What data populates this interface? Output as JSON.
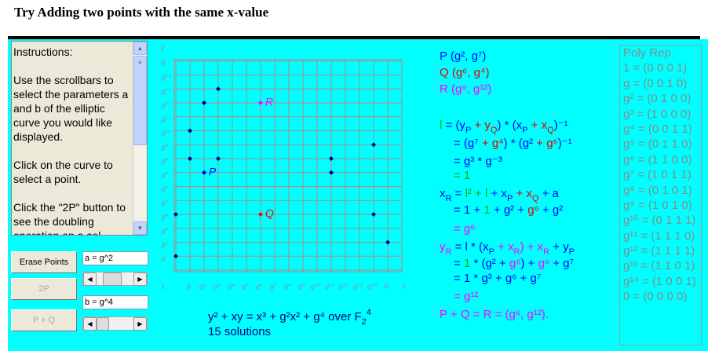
{
  "header": {
    "title": "Try Adding two points with the same x-value"
  },
  "instructions": {
    "heading": "Instructions:",
    "paragraphs": [
      "Use the scrollbars to select the parameters a and b of the elliptic curve you would like displayed.",
      "Click on the curve to select a point.",
      "Click the \"2P\" button to see the doubling operation on a sel"
    ]
  },
  "controls": {
    "erase": "Erase Points",
    "double": "2P",
    "add": "P + Q",
    "a_field": "a = g^2",
    "b_field": "b = g^4"
  },
  "plot": {
    "x_label": "x",
    "y_label": "y",
    "x_categories": [
      null,
      "g",
      "g²",
      "g³",
      "g⁴",
      "g⁵",
      "g⁶",
      "g⁷",
      "g⁸",
      "g⁹",
      "g¹⁰",
      "g¹¹",
      "g¹²",
      "g¹³",
      "g¹⁴",
      "0"
    ],
    "y_categories": [
      "1",
      "g",
      "g²",
      "g³",
      "g⁴",
      "g⁵",
      "g⁶",
      "g⁷",
      "g⁸",
      "g⁹",
      "g¹⁰",
      "g¹¹",
      "g¹²",
      "g¹³",
      "g¹⁴",
      "0"
    ],
    "point_color": "#000080",
    "points": [
      {
        "x": 0,
        "y": 4
      },
      {
        "x": 0,
        "y": 1
      },
      {
        "x": 1,
        "y": 10
      },
      {
        "x": 1,
        "y": 8
      },
      {
        "x": 2,
        "y": 12
      },
      {
        "x": 2,
        "y": 7,
        "label": "P",
        "color": "#0000ff"
      },
      {
        "x": 3,
        "y": 13
      },
      {
        "x": 3,
        "y": 8
      },
      {
        "x": 6,
        "y": 12,
        "label": "R",
        "color": "#ff00ff"
      },
      {
        "x": 6,
        "y": 4,
        "label": "Q",
        "color": "#ff0000"
      },
      {
        "x": 11,
        "y": 8
      },
      {
        "x": 11,
        "y": 7
      },
      {
        "x": 14,
        "y": 9
      },
      {
        "x": 14,
        "y": 4
      },
      {
        "x": 15,
        "y": 2
      }
    ]
  },
  "formulas": [
    [
      {
        "text": "P (g², g⁷)",
        "color": "#0000ff"
      }
    ],
    [
      {
        "text": "Q (g⁶, g⁴)",
        "color": "#e00000"
      }
    ],
    [
      {
        "text": "R (g⁶, g¹²)",
        "color": "#ff00ff"
      }
    ],
    [
      {
        "text": "l",
        "color": "#00b000"
      },
      {
        "text": " = (y",
        "color": "#0000ff"
      },
      {
        "text": "P",
        "color": "#0000ff",
        "sub": true
      },
      {
        "text": " + y",
        "color": "#e00000"
      },
      {
        "text": "Q",
        "color": "#e00000",
        "sub": true
      },
      {
        "text": ") * (x",
        "color": "#0000ff"
      },
      {
        "text": "P",
        "color": "#0000ff",
        "sub": true
      },
      {
        "text": " + x",
        "color": "#e00000"
      },
      {
        "text": "Q",
        "color": "#e00000",
        "sub": true
      },
      {
        "text": ")⁻¹",
        "color": "#0000ff"
      }
    ],
    [
      {
        "text": "= (g⁷",
        "color": "#0000ff"
      },
      {
        "text": " + g⁴",
        "color": "#e00000"
      },
      {
        "text": ") * (g²",
        "color": "#0000ff"
      },
      {
        "text": " + g⁶",
        "color": "#e00000"
      },
      {
        "text": ")⁻¹",
        "color": "#0000ff"
      }
    ],
    [
      {
        "text": "= g³ * g⁻³",
        "color": "#0000ff"
      }
    ],
    [
      {
        "text": "= 1",
        "color": "#00b000"
      }
    ],
    [
      {
        "text": "x",
        "color": "#0000ff"
      },
      {
        "text": "R",
        "color": "#0000ff",
        "sub": true
      },
      {
        "text": " = ",
        "color": "#0000ff"
      },
      {
        "text": "l² + l",
        "color": "#00b000"
      },
      {
        "text": " + x",
        "color": "#0000ff"
      },
      {
        "text": "P",
        "color": "#0000ff",
        "sub": true
      },
      {
        "text": " + x",
        "color": "#e00000"
      },
      {
        "text": "Q",
        "color": "#e00000",
        "sub": true
      },
      {
        "text": " + a",
        "color": "#0000ff"
      }
    ],
    [
      {
        "text": "= 1 + ",
        "color": "#0000ff"
      },
      {
        "text": "1",
        "color": "#00b000"
      },
      {
        "text": " + g² + ",
        "color": "#0000ff"
      },
      {
        "text": "g⁶",
        "color": "#e00000"
      },
      {
        "text": " + g²",
        "color": "#0000ff"
      }
    ],
    [
      {
        "text": "= g⁶",
        "color": "#ff00ff"
      }
    ],
    [
      {
        "text": "y",
        "color": "#ff00ff"
      },
      {
        "text": "R",
        "color": "#ff00ff",
        "sub": true
      },
      {
        "text": " = l * (x",
        "color": "#0000ff"
      },
      {
        "text": "P",
        "color": "#0000ff",
        "sub": true
      },
      {
        "text": " + x",
        "color": "#ff00ff"
      },
      {
        "text": "R",
        "color": "#ff00ff",
        "sub": true
      },
      {
        "text": ") + x",
        "color": "#ff00ff"
      },
      {
        "text": "R",
        "color": "#ff00ff",
        "sub": true
      },
      {
        "text": " + y",
        "color": "#0000ff"
      },
      {
        "text": "P",
        "color": "#0000ff",
        "sub": true
      }
    ],
    [
      {
        "text": "= ",
        "color": "#0000ff"
      },
      {
        "text": "1",
        "color": "#00b000"
      },
      {
        "text": " * (g² + ",
        "color": "#0000ff"
      },
      {
        "text": "g⁶",
        "color": "#ff00ff"
      },
      {
        "text": ") + ",
        "color": "#0000ff"
      },
      {
        "text": "g⁶",
        "color": "#ff00ff"
      },
      {
        "text": " + g⁷",
        "color": "#0000ff"
      }
    ],
    [
      {
        "text": "= 1 * g³ + g⁶ + g⁷",
        "color": "#0000ff"
      }
    ],
    [
      {
        "text": "= g¹²",
        "color": "#ff00ff"
      }
    ],
    [
      {
        "text": "P + Q = R = (g⁶, g¹²).",
        "color": "#ff00ff"
      }
    ]
  ],
  "equation": [
    {
      "text": "y² + xy = x³ + g²x² + g⁴ over F",
      "color": "#000080"
    },
    {
      "text": "2",
      "color": "#000080",
      "sub": true
    },
    {
      "text": "4",
      "color": "#000080",
      "sup": true
    }
  ],
  "solutions": "15 solutions",
  "poly_rep": {
    "title": "Poly Rep.",
    "rows": [
      "1 = (0 0 0 1)",
      "g = (0 0 1 0)",
      "g² = (0 1 0 0)",
      "g³ = (1 0 0 0)",
      "g⁴ = (0 0 1 1)",
      "g⁵ = (0 1 1 0)",
      "g⁶ = (1 1 0 0)",
      "g⁷ = (1 0 1 1)",
      "g⁸ = (0 1 0 1)",
      "g⁹ = (1 0 1 0)",
      "g¹⁰ = (0 1 1 1)",
      "g¹¹ = (1 1 1 0)",
      "g¹² = (1 1 1 1)",
      "g¹³ = (1 1 0 1)",
      "g¹⁴ = (1 0 0 1)",
      "0 = (0 0 0 0)"
    ]
  }
}
